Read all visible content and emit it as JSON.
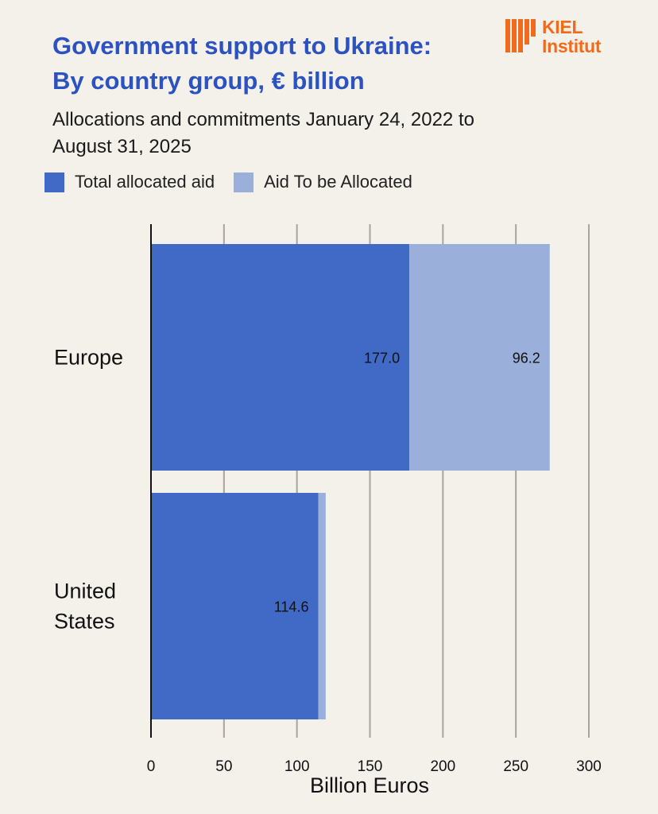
{
  "header": {
    "title_line1": "Government support to Ukraine:",
    "title_line2": "By country group, € billion",
    "subtitle_line1": "Allocations and commitments January 24, 2022 to",
    "subtitle_line2": "August 31, 2025",
    "logo_line1": "KIEL",
    "logo_line2": "Institut"
  },
  "colors": {
    "allocated": "#4169c6",
    "to_be_allocated": "#9aafd9",
    "title": "#2b52c0",
    "logo": "#f26a1b"
  },
  "chart_data": {
    "type": "bar",
    "orientation": "horizontal",
    "stacked": true,
    "categories": [
      "Europe",
      "United States"
    ],
    "category_display": [
      [
        "Europe"
      ],
      [
        "United",
        "States"
      ]
    ],
    "series": [
      {
        "name": "Total allocated aid",
        "values": [
          177.0,
          114.6
        ],
        "labels": [
          "177.0",
          "114.6"
        ]
      },
      {
        "name": "Aid To be Allocated",
        "values": [
          96.2,
          5.1
        ],
        "labels": [
          "96.2",
          ""
        ]
      }
    ],
    "xlabel": "Billion Euros",
    "xlim": [
      0,
      300
    ],
    "xticks": [
      "0",
      "50",
      "100",
      "150",
      "200",
      "250",
      "300"
    ],
    "grid": true,
    "legend": "top-left"
  }
}
